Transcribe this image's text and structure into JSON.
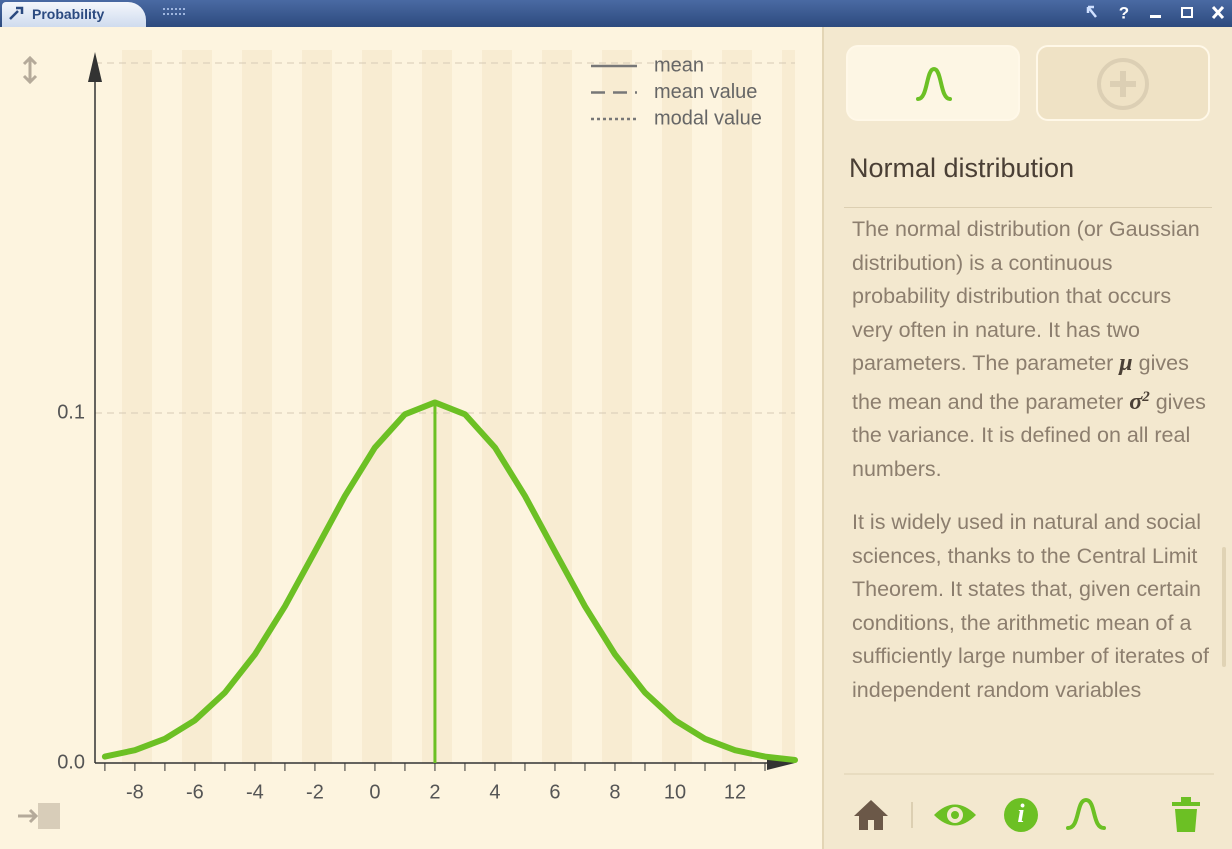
{
  "app_title": "Probability",
  "chart_data": {
    "type": "line",
    "x": [
      -9,
      -8,
      -7,
      -6,
      -5,
      -4,
      -3,
      -2,
      -1,
      0,
      1,
      2,
      3,
      4,
      5,
      6,
      7,
      8,
      9,
      10,
      11,
      12,
      13,
      14
    ],
    "values": [
      0.00183,
      0.00367,
      0.00692,
      0.01221,
      0.02012,
      0.03103,
      0.04477,
      0.06043,
      0.07631,
      0.09015,
      0.09963,
      0.10301,
      0.09963,
      0.09015,
      0.07631,
      0.06043,
      0.04477,
      0.03103,
      0.02012,
      0.01221,
      0.00692,
      0.00367,
      0.00183,
      0.00085
    ],
    "color": "#6cc024",
    "mean_line": {
      "x": 2,
      "y": 0.10301,
      "color": "#6cc024"
    },
    "xlim": [
      -9.33,
      14
    ],
    "ylim": [
      0,
      0.2
    ],
    "xticks": [
      -8,
      -6,
      -4,
      -2,
      0,
      2,
      4,
      6,
      8,
      10,
      12
    ],
    "xminor_ticks": [
      -9,
      -7,
      -5,
      -3,
      -1,
      1,
      3,
      5,
      7,
      9,
      11,
      13
    ],
    "yticks": [
      {
        "value": 0,
        "label": "0.0"
      },
      {
        "value": 0.1,
        "label": "0.1"
      }
    ],
    "grid": true,
    "legend": [
      {
        "label": "mean",
        "style": "solid"
      },
      {
        "label": "mean value",
        "style": "dashed"
      },
      {
        "label": "modal value",
        "style": "dotted"
      }
    ]
  },
  "panel": {
    "title": "Normal distribution",
    "paragraphs": [
      [
        "The normal distribution (or Gaussian distribution) is a continuous probability distribution that occurs very often in nature. It has two parameters. The parameter",
        "μ",
        "gives the mean and the parameter",
        "σ",
        "2",
        "gives the variance. It is defined on all real numbers."
      ],
      "It is widely used in natural and social sciences, thanks to the Central Limit Theorem. It states that, given certain conditions, the arithmetic mean of a sufficiently large number of iterates of independent random variables"
    ]
  }
}
